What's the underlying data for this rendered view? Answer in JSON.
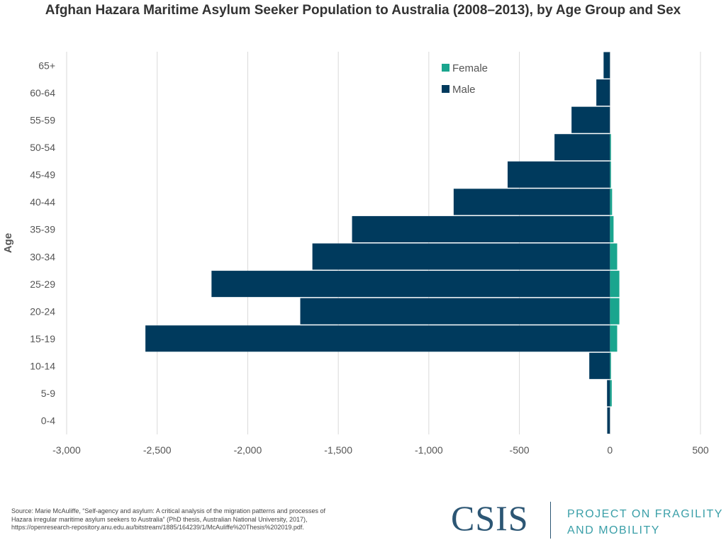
{
  "chart_data": {
    "type": "bar",
    "orientation": "horizontal",
    "title": "Afghan Hazara Maritime Asylum Seeker Population to Australia (2008–2013), by Age Group and Sex",
    "ylabel": "Age",
    "xlabel": "",
    "categories": [
      "65+",
      "60-64",
      "55-59",
      "50-54",
      "45-49",
      "40-44",
      "35-39",
      "30-34",
      "25-29",
      "20-24",
      "15-19",
      "10-14",
      "5-9",
      "0-4"
    ],
    "series": [
      {
        "name": "Female",
        "color": "#1aa58e",
        "values": [
          0,
          0,
          0,
          3,
          3,
          12,
          20,
          40,
          52,
          52,
          40,
          4,
          10,
          0
        ]
      },
      {
        "name": "Male",
        "color": "#003a5d",
        "values": [
          -35,
          -75,
          -212,
          -306,
          -565,
          -863,
          -1424,
          -1643,
          -2200,
          -1710,
          -2565,
          -114,
          -16,
          -15
        ]
      }
    ],
    "xlim": [
      -3000,
      500
    ],
    "xticks": [
      -3000,
      -2500,
      -2000,
      -1500,
      -1000,
      -500,
      0,
      500
    ],
    "xtick_labels": [
      "-3,000",
      "-2,500",
      "-2,000",
      "-1,500",
      "-1,000",
      "-500",
      "0",
      "500"
    ],
    "grid": true,
    "legend_position": "top-right"
  },
  "source": [
    "Source: Marie McAuliffe, “Self-agency and asylum: A critical analysis of the migration patterns and processes of",
    "Hazara irregular maritime asylum seekers to Australia” (PhD thesis, Australian National University, 2017),",
    "https://openresearch-repository.anu.edu.au/bitstream/1885/164239/1/McAuliffe%20Thesis%202019.pdf."
  ],
  "logo": {
    "name": "CSIS",
    "project_line1": "PROJECT ON FRAGILITY",
    "project_line2": "AND MOBILITY"
  }
}
